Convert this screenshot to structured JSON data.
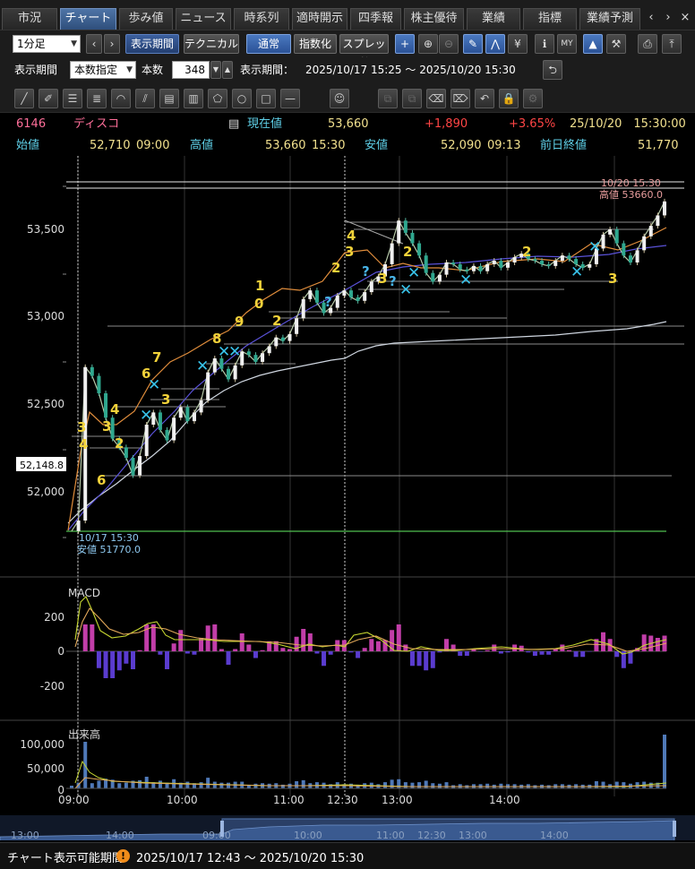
{
  "tabs": [
    {
      "label": "市況",
      "active": false
    },
    {
      "label": "チャート",
      "active": true
    },
    {
      "label": "歩み値",
      "active": false
    },
    {
      "label": "ニュース",
      "active": false
    },
    {
      "label": "時系列",
      "active": false
    },
    {
      "label": "適時開示",
      "active": false
    },
    {
      "label": "四季報",
      "active": false
    },
    {
      "label": "株主優待",
      "active": false
    },
    {
      "label": "業績",
      "active": false
    },
    {
      "label": "指標",
      "active": false
    },
    {
      "label": "業績予測",
      "active": false
    }
  ],
  "toolbar": {
    "interval_select": "1分足",
    "display_period_btn": "表示期間",
    "technical_btn": "テクニカル",
    "normal_btn": "通常",
    "index_btn": "指数化",
    "spread_btn": "スプレッド"
  },
  "period_row": {
    "label": "表示期間",
    "mode_select": "本数指定",
    "count_label": "本数",
    "count_value": "348",
    "range_label": "表示期間：",
    "range_value": "2025/10/17 15:25 〜 2025/10/20 15:30"
  },
  "quote": {
    "code": "6146",
    "name": "ディスコ",
    "current_label": "現在値",
    "current_value": "53,660",
    "change": "+1,890",
    "change_pct": "+3.65%",
    "datetime": "25/10/20　15:30:00",
    "open_label": "始値",
    "open_value": "52,710",
    "open_time": "09:00",
    "high_label": "高値",
    "high_value": "53,660",
    "high_time": "15:30",
    "low_label": "安値",
    "low_value": "52,090",
    "low_time": "09:13",
    "prev_close_label": "前日終値",
    "prev_close_value": "51,770"
  },
  "chart_data": {
    "type": "candlestick",
    "price_axis": {
      "ticks": [
        "53,500",
        "53,000",
        "52,500",
        "52,000"
      ],
      "cursor_label": "52,148.8"
    },
    "annotations": {
      "high_date": "10/20 15:30",
      "high_text": "高値 53660.0",
      "low_date": "10/17 15:30",
      "low_text": "安値 51770.0"
    },
    "macd": {
      "label": "MACD",
      "ticks": [
        "200",
        "0",
        "-200"
      ]
    },
    "volume": {
      "label": "出来高",
      "ticks": [
        "100,000",
        "50,000",
        "0"
      ]
    },
    "time_axis": [
      "09:00",
      "10:00",
      "11:00",
      "12:30",
      "13:00",
      "14:00"
    ],
    "navigator_axis": [
      "13:00",
      "14:00",
      "09:00",
      "10:00",
      "11:00",
      "12:30",
      "13:00",
      "14:00"
    ],
    "price_series": [
      51770,
      51830,
      52710,
      52660,
      52560,
      52420,
      52300,
      52250,
      52190,
      52090,
      52200,
      52380,
      52450,
      52350,
      52290,
      52420,
      52480,
      52400,
      52450,
      52520,
      52680,
      52760,
      52700,
      52640,
      52720,
      52800,
      52780,
      52740,
      52790,
      52830,
      52880,
      52860,
      52900,
      52990,
      53100,
      53150,
      53080,
      53020,
      53050,
      53120,
      53150,
      53110,
      53090,
      53140,
      53200,
      53230,
      53300,
      53420,
      53550,
      53480,
      53420,
      53350,
      53250,
      53200,
      53240,
      53310,
      53300,
      53270,
      53260,
      53290,
      53260,
      53300,
      53320,
      53280,
      53310,
      53340,
      53360,
      53330,
      53320,
      53300,
      53290,
      53320,
      53350,
      53330,
      53300,
      53280,
      53300,
      53390,
      53470,
      53500,
      53420,
      53350,
      53310,
      53380,
      53460,
      53520,
      53580,
      53660
    ],
    "markers": {
      "yellow": [
        "3",
        "4",
        "3",
        "2",
        "4",
        "6",
        "6",
        "3",
        "7",
        "8",
        "9",
        "1",
        "0",
        "2",
        "2",
        "3",
        "4",
        "3",
        "2",
        "2",
        "3"
      ],
      "question": [
        "?",
        "?",
        "?"
      ],
      "cross": "✕"
    }
  },
  "status": {
    "label": "チャート表示可能期間",
    "range": "2025/10/17 12:43 〜 2025/10/20 15:30"
  }
}
